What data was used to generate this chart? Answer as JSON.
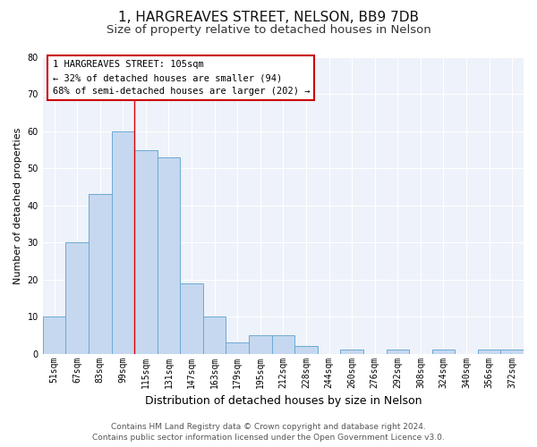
{
  "title": "1, HARGREAVES STREET, NELSON, BB9 7DB",
  "subtitle": "Size of property relative to detached houses in Nelson",
  "xlabel": "Distribution of detached houses by size in Nelson",
  "ylabel": "Number of detached properties",
  "bar_labels": [
    "51sqm",
    "67sqm",
    "83sqm",
    "99sqm",
    "115sqm",
    "131sqm",
    "147sqm",
    "163sqm",
    "179sqm",
    "195sqm",
    "212sqm",
    "228sqm",
    "244sqm",
    "260sqm",
    "276sqm",
    "292sqm",
    "308sqm",
    "324sqm",
    "340sqm",
    "356sqm",
    "372sqm"
  ],
  "bar_values": [
    10,
    30,
    43,
    60,
    55,
    53,
    19,
    10,
    3,
    5,
    5,
    2,
    0,
    1,
    0,
    1,
    0,
    1,
    0,
    1,
    1
  ],
  "bar_color": "#c5d8f0",
  "bar_edge_color": "#6aaad4",
  "ylim": [
    0,
    80
  ],
  "yticks": [
    0,
    10,
    20,
    30,
    40,
    50,
    60,
    70,
    80
  ],
  "vline_x": 3.5,
  "vline_color": "#dd0000",
  "annotation_line1": "1 HARGREAVES STREET: 105sqm",
  "annotation_line2": "← 32% of detached houses are smaller (94)",
  "annotation_line3": "68% of semi-detached houses are larger (202) →",
  "footer_line1": "Contains HM Land Registry data © Crown copyright and database right 2024.",
  "footer_line2": "Contains public sector information licensed under the Open Government Licence v3.0.",
  "bg_color": "#ffffff",
  "plot_bg_color": "#eef2fa",
  "title_fontsize": 11,
  "subtitle_fontsize": 9.5,
  "xlabel_fontsize": 9,
  "ylabel_fontsize": 8,
  "tick_fontsize": 7,
  "footer_fontsize": 6.5,
  "annotation_fontsize": 7.5
}
